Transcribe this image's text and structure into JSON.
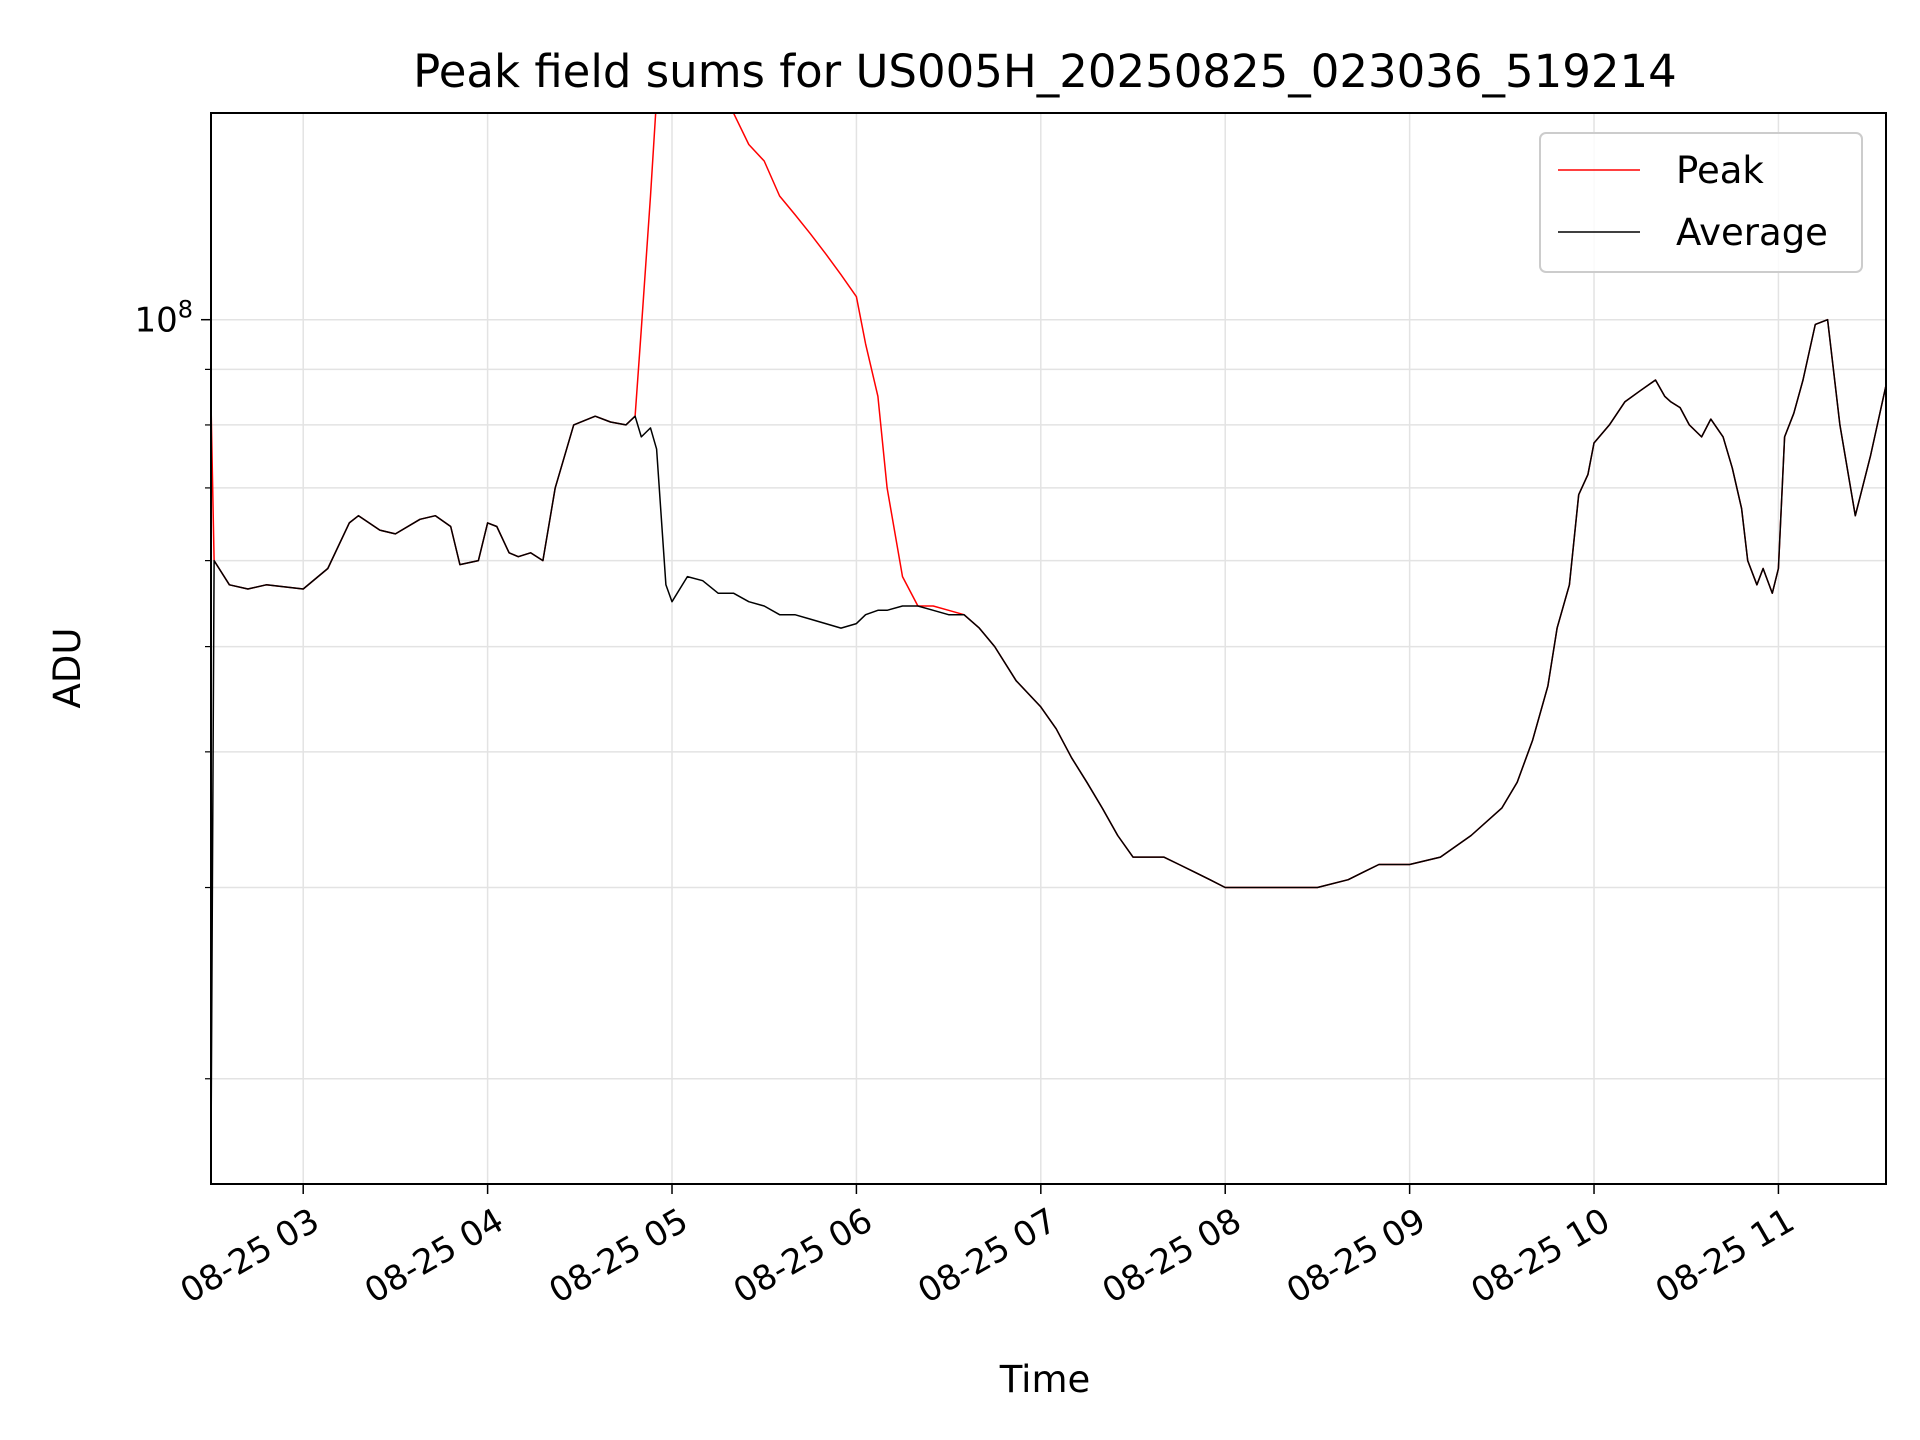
{
  "chart_data": {
    "type": "line",
    "title": "Peak field sums for US005H_20250825_023036_519214",
    "xlabel": "Time",
    "ylabel": "ADU",
    "y_scale": "log",
    "ylim": [
      16000000,
      155000000
    ],
    "xlim": [
      "2025-08-25 02:30",
      "2025-08-25 11:35"
    ],
    "x_tick_labels": [
      "08-25 03",
      "08-25 04",
      "08-25 05",
      "08-25 06",
      "08-25 07",
      "08-25 08",
      "08-25 09",
      "08-25 10",
      "08-25 11"
    ],
    "x_ticks": [
      "2025-08-25 03:00",
      "2025-08-25 04:00",
      "2025-08-25 05:00",
      "2025-08-25 06:00",
      "2025-08-25 07:00",
      "2025-08-25 08:00",
      "2025-08-25 09:00",
      "2025-08-25 10:00",
      "2025-08-25 11:00"
    ],
    "y_tick_label": "10^8",
    "y_tick_value": 100000000,
    "y_minor_ticks": [
      20000000,
      30000000,
      40000000,
      50000000,
      60000000,
      70000000,
      80000000,
      90000000,
      200000000
    ],
    "grid": true,
    "legend_position": "top-right",
    "series": [
      {
        "name": "Peak",
        "color": "#ff0000",
        "x": [
          "2025-08-25 02:30",
          "2025-08-25 02:31",
          "2025-08-25 02:36",
          "2025-08-25 02:42",
          "2025-08-25 02:48",
          "2025-08-25 03:00",
          "2025-08-25 03:08",
          "2025-08-25 03:15",
          "2025-08-25 03:18",
          "2025-08-25 03:25",
          "2025-08-25 03:30",
          "2025-08-25 03:38",
          "2025-08-25 03:43",
          "2025-08-25 03:48",
          "2025-08-25 03:51",
          "2025-08-25 03:57",
          "2025-08-25 04:00",
          "2025-08-25 04:03",
          "2025-08-25 04:07",
          "2025-08-25 04:10",
          "2025-08-25 04:14",
          "2025-08-25 04:18",
          "2025-08-25 04:22",
          "2025-08-25 04:28",
          "2025-08-25 04:35",
          "2025-08-25 04:40",
          "2025-08-25 04:45",
          "2025-08-25 04:48",
          "2025-08-25 04:50",
          "2025-08-25 04:53",
          "2025-08-25 04:55",
          "2025-08-25 04:58",
          "2025-08-25 05:00",
          "2025-08-25 05:05",
          "2025-08-25 05:10",
          "2025-08-25 05:15",
          "2025-08-25 05:20",
          "2025-08-25 05:25",
          "2025-08-25 05:30",
          "2025-08-25 05:35",
          "2025-08-25 05:40",
          "2025-08-25 05:45",
          "2025-08-25 05:50",
          "2025-08-25 05:55",
          "2025-08-25 06:00",
          "2025-08-25 06:03",
          "2025-08-25 06:07",
          "2025-08-25 06:10",
          "2025-08-25 06:15",
          "2025-08-25 06:20",
          "2025-08-25 06:25",
          "2025-08-25 06:30",
          "2025-08-25 06:35",
          "2025-08-25 06:40",
          "2025-08-25 06:45",
          "2025-08-25 06:52",
          "2025-08-25 07:00",
          "2025-08-25 07:05",
          "2025-08-25 07:10",
          "2025-08-25 07:15",
          "2025-08-25 07:20",
          "2025-08-25 07:25",
          "2025-08-25 07:30",
          "2025-08-25 07:35",
          "2025-08-25 07:40",
          "2025-08-25 07:45",
          "2025-08-25 07:50",
          "2025-08-25 07:55",
          "2025-08-25 08:00",
          "2025-08-25 08:10",
          "2025-08-25 08:20",
          "2025-08-25 08:30",
          "2025-08-25 08:40",
          "2025-08-25 08:45",
          "2025-08-25 08:50",
          "2025-08-25 09:00",
          "2025-08-25 09:10",
          "2025-08-25 09:20",
          "2025-08-25 09:30",
          "2025-08-25 09:35",
          "2025-08-25 09:40",
          "2025-08-25 09:45",
          "2025-08-25 09:48",
          "2025-08-25 09:52",
          "2025-08-25 09:55",
          "2025-08-25 09:58",
          "2025-08-25 10:00",
          "2025-08-25 10:05",
          "2025-08-25 10:10",
          "2025-08-25 10:15",
          "2025-08-25 10:20",
          "2025-08-25 10:23",
          "2025-08-25 10:25",
          "2025-08-25 10:28",
          "2025-08-25 10:31",
          "2025-08-25 10:35",
          "2025-08-25 10:38",
          "2025-08-25 10:42",
          "2025-08-25 10:45",
          "2025-08-25 10:48",
          "2025-08-25 10:50",
          "2025-08-25 10:53",
          "2025-08-25 10:55",
          "2025-08-25 10:58",
          "2025-08-25 11:00",
          "2025-08-25 11:02",
          "2025-08-25 11:05",
          "2025-08-25 11:08",
          "2025-08-25 11:12",
          "2025-08-25 11:16",
          "2025-08-25 11:20",
          "2025-08-25 11:25",
          "2025-08-25 11:30",
          "2025-08-25 11:35"
        ],
        "values": [
          84000000,
          60000000,
          57000000,
          56500000,
          57000000,
          56500000,
          59000000,
          65000000,
          66000000,
          64000000,
          63500000,
          65500000,
          66000000,
          64500000,
          59500000,
          60000000,
          65000000,
          64500000,
          61000000,
          60500000,
          61000000,
          60000000,
          70000000,
          80000000,
          81500000,
          80500000,
          80000000,
          81500000,
          98000000,
          130000000,
          160000000,
          160000000,
          160000000,
          160000000,
          160000000,
          160000000,
          155000000,
          145000000,
          140000000,
          130000000,
          125000000,
          120000000,
          115000000,
          110000000,
          105000000,
          95000000,
          85000000,
          70000000,
          58000000,
          54500000,
          54500000,
          54000000,
          53500000,
          52000000,
          50000000,
          46500000,
          44000000,
          42000000,
          39500000,
          37500000,
          35500000,
          33500000,
          32000000,
          32000000,
          32000000,
          31500000,
          31000000,
          30500000,
          30000000,
          30000000,
          30000000,
          30000000,
          30500000,
          31000000,
          31500000,
          31500000,
          32000000,
          33500000,
          35500000,
          37500000,
          41000000,
          46000000,
          52000000,
          57000000,
          69000000,
          72000000,
          77000000,
          80000000,
          84000000,
          86000000,
          88000000,
          85000000,
          84000000,
          83000000,
          80000000,
          78000000,
          81000000,
          78000000,
          73000000,
          67000000,
          60000000,
          57000000,
          59000000,
          56000000,
          59000000,
          78000000,
          82000000,
          88000000,
          99000000,
          100000000,
          80000000,
          66000000,
          75000000,
          87000000
        ]
      },
      {
        "name": "Average",
        "color": "#000000",
        "x": [
          "2025-08-25 02:30",
          "2025-08-25 02:31",
          "2025-08-25 02:36",
          "2025-08-25 02:42",
          "2025-08-25 02:48",
          "2025-08-25 03:00",
          "2025-08-25 03:08",
          "2025-08-25 03:15",
          "2025-08-25 03:18",
          "2025-08-25 03:25",
          "2025-08-25 03:30",
          "2025-08-25 03:38",
          "2025-08-25 03:43",
          "2025-08-25 03:48",
          "2025-08-25 03:51",
          "2025-08-25 03:57",
          "2025-08-25 04:00",
          "2025-08-25 04:03",
          "2025-08-25 04:07",
          "2025-08-25 04:10",
          "2025-08-25 04:14",
          "2025-08-25 04:18",
          "2025-08-25 04:22",
          "2025-08-25 04:28",
          "2025-08-25 04:35",
          "2025-08-25 04:40",
          "2025-08-25 04:45",
          "2025-08-25 04:48",
          "2025-08-25 04:50",
          "2025-08-25 04:53",
          "2025-08-25 04:55",
          "2025-08-25 04:58",
          "2025-08-25 05:00",
          "2025-08-25 05:05",
          "2025-08-25 05:10",
          "2025-08-25 05:15",
          "2025-08-25 05:20",
          "2025-08-25 05:25",
          "2025-08-25 05:30",
          "2025-08-25 05:35",
          "2025-08-25 05:40",
          "2025-08-25 05:45",
          "2025-08-25 05:50",
          "2025-08-25 05:55",
          "2025-08-25 06:00",
          "2025-08-25 06:03",
          "2025-08-25 06:07",
          "2025-08-25 06:10",
          "2025-08-25 06:15",
          "2025-08-25 06:20",
          "2025-08-25 06:25",
          "2025-08-25 06:30",
          "2025-08-25 06:35",
          "2025-08-25 06:40",
          "2025-08-25 06:45",
          "2025-08-25 06:52",
          "2025-08-25 07:00",
          "2025-08-25 07:05",
          "2025-08-25 07:10",
          "2025-08-25 07:15",
          "2025-08-25 07:20",
          "2025-08-25 07:25",
          "2025-08-25 07:30",
          "2025-08-25 07:35",
          "2025-08-25 07:40",
          "2025-08-25 07:45",
          "2025-08-25 07:50",
          "2025-08-25 07:55",
          "2025-08-25 08:00",
          "2025-08-25 08:10",
          "2025-08-25 08:20",
          "2025-08-25 08:30",
          "2025-08-25 08:40",
          "2025-08-25 08:45",
          "2025-08-25 08:50",
          "2025-08-25 09:00",
          "2025-08-25 09:10",
          "2025-08-25 09:20",
          "2025-08-25 09:30",
          "2025-08-25 09:35",
          "2025-08-25 09:40",
          "2025-08-25 09:45",
          "2025-08-25 09:48",
          "2025-08-25 09:52",
          "2025-08-25 09:55",
          "2025-08-25 09:58",
          "2025-08-25 10:00",
          "2025-08-25 10:05",
          "2025-08-25 10:10",
          "2025-08-25 10:15",
          "2025-08-25 10:20",
          "2025-08-25 10:23",
          "2025-08-25 10:25",
          "2025-08-25 10:28",
          "2025-08-25 10:31",
          "2025-08-25 10:35",
          "2025-08-25 10:38",
          "2025-08-25 10:42",
          "2025-08-25 10:45",
          "2025-08-25 10:48",
          "2025-08-25 10:50",
          "2025-08-25 10:53",
          "2025-08-25 10:55",
          "2025-08-25 10:58",
          "2025-08-25 11:00",
          "2025-08-25 11:02",
          "2025-08-25 11:05",
          "2025-08-25 11:08",
          "2025-08-25 11:12",
          "2025-08-25 11:16",
          "2025-08-25 11:20",
          "2025-08-25 11:25",
          "2025-08-25 11:30",
          "2025-08-25 11:35"
        ],
        "values": [
          17000000,
          60000000,
          57000000,
          56500000,
          57000000,
          56500000,
          59000000,
          65000000,
          66000000,
          64000000,
          63500000,
          65500000,
          66000000,
          64500000,
          59500000,
          60000000,
          65000000,
          64500000,
          61000000,
          60500000,
          61000000,
          60000000,
          70000000,
          80000000,
          81500000,
          80500000,
          80000000,
          81500000,
          78000000,
          79500000,
          76000000,
          57000000,
          55000000,
          58000000,
          57500000,
          56000000,
          56000000,
          55000000,
          54500000,
          53500000,
          53500000,
          53000000,
          52500000,
          52000000,
          52500000,
          53500000,
          54000000,
          54000000,
          54500000,
          54500000,
          54000000,
          53500000,
          53500000,
          52000000,
          50000000,
          46500000,
          44000000,
          42000000,
          39500000,
          37500000,
          35500000,
          33500000,
          32000000,
          32000000,
          32000000,
          31500000,
          31000000,
          30500000,
          30000000,
          30000000,
          30000000,
          30000000,
          30500000,
          31000000,
          31500000,
          31500000,
          32000000,
          33500000,
          35500000,
          37500000,
          41000000,
          46000000,
          52000000,
          57000000,
          69000000,
          72000000,
          77000000,
          80000000,
          84000000,
          86000000,
          88000000,
          85000000,
          84000000,
          83000000,
          80000000,
          78000000,
          81000000,
          78000000,
          73000000,
          67000000,
          60000000,
          57000000,
          59000000,
          56000000,
          59000000,
          78000000,
          82000000,
          88000000,
          99000000,
          100000000,
          80000000,
          66000000,
          75000000,
          87000000
        ]
      }
    ]
  },
  "legend": {
    "items": [
      {
        "label": "Peak",
        "color": "#ff0000"
      },
      {
        "label": "Average",
        "color": "#000000"
      }
    ]
  }
}
